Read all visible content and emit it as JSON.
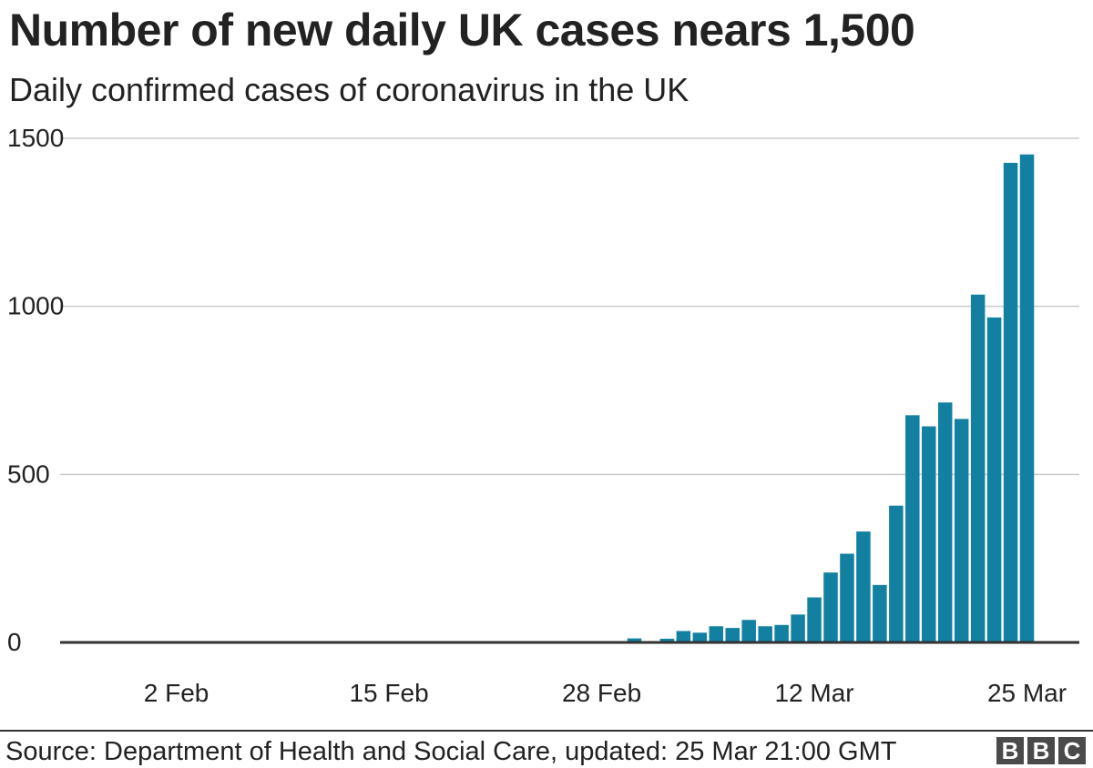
{
  "chart_data": {
    "type": "bar",
    "title": "Number of new daily UK cases nears 1,500",
    "subtitle": "Daily confirmed cases of coronavirus in the UK",
    "xlabel": "",
    "ylabel": "",
    "x_start_date": "2020-01-23",
    "x_ticks": [
      {
        "label": "2 Feb",
        "date": "2020-02-02"
      },
      {
        "label": "15 Feb",
        "date": "2020-02-15"
      },
      {
        "label": "28 Feb",
        "date": "2020-02-28"
      },
      {
        "label": "12 Mar",
        "date": "2020-03-12"
      },
      {
        "label": "25 Mar",
        "date": "2020-03-25"
      }
    ],
    "y_ticks": [
      0,
      500,
      1000,
      1500
    ],
    "ylim": [
      0,
      1500
    ],
    "grid": true,
    "bar_color": "#1380A1",
    "gridline_color": "#cbcbcb",
    "baseline_color": "#333333",
    "points": [
      {
        "date": "2020-03-01",
        "value": 12
      },
      {
        "date": "2020-03-02",
        "value": 4
      },
      {
        "date": "2020-03-03",
        "value": 11
      },
      {
        "date": "2020-03-04",
        "value": 34
      },
      {
        "date": "2020-03-05",
        "value": 29
      },
      {
        "date": "2020-03-06",
        "value": 48
      },
      {
        "date": "2020-03-07",
        "value": 43
      },
      {
        "date": "2020-03-08",
        "value": 67
      },
      {
        "date": "2020-03-09",
        "value": 48
      },
      {
        "date": "2020-03-10",
        "value": 52
      },
      {
        "date": "2020-03-11",
        "value": 83
      },
      {
        "date": "2020-03-12",
        "value": 134
      },
      {
        "date": "2020-03-13",
        "value": 208
      },
      {
        "date": "2020-03-14",
        "value": 264
      },
      {
        "date": "2020-03-15",
        "value": 330
      },
      {
        "date": "2020-03-16",
        "value": 171
      },
      {
        "date": "2020-03-17",
        "value": 407
      },
      {
        "date": "2020-03-18",
        "value": 676
      },
      {
        "date": "2020-03-19",
        "value": 643
      },
      {
        "date": "2020-03-20",
        "value": 714
      },
      {
        "date": "2020-03-21",
        "value": 665
      },
      {
        "date": "2020-03-22",
        "value": 1035
      },
      {
        "date": "2020-03-23",
        "value": 967
      },
      {
        "date": "2020-03-24",
        "value": 1427
      },
      {
        "date": "2020-03-25",
        "value": 1452
      }
    ]
  },
  "footer": {
    "source": "Source: Department of Health and Social Care, updated: 25 Mar 21:00 GMT",
    "logo_letters": [
      "B",
      "B",
      "C"
    ]
  }
}
